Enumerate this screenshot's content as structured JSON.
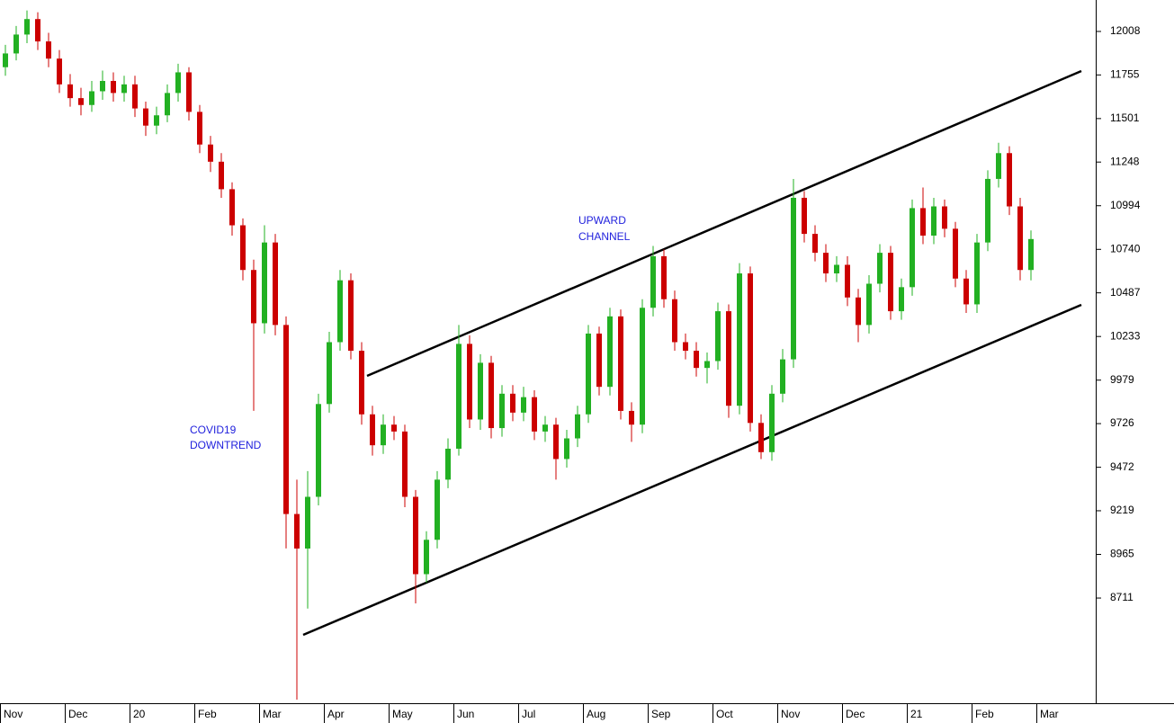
{
  "chart_data": {
    "type": "candlestick",
    "categories": [
      "Nov",
      null,
      null,
      null,
      null,
      null,
      "Dec",
      null,
      null,
      null,
      null,
      null,
      "20",
      null,
      null,
      null,
      null,
      null,
      "Feb",
      null,
      null,
      null,
      null,
      null,
      "Mar",
      null,
      null,
      null,
      null,
      null,
      "Apr",
      null,
      null,
      null,
      null,
      null,
      "May",
      null,
      null,
      null,
      null,
      null,
      "Jun",
      null,
      null,
      null,
      null,
      null,
      "Jul",
      null,
      null,
      null,
      null,
      null,
      "Aug",
      null,
      null,
      null,
      null,
      null,
      "Sep",
      null,
      null,
      null,
      null,
      null,
      "Oct",
      null,
      null,
      null,
      null,
      null,
      "Nov",
      null,
      null,
      null,
      null,
      null,
      "Dec",
      null,
      null,
      null,
      null,
      null,
      "21",
      null,
      null,
      null,
      null,
      null,
      "Feb",
      null,
      null,
      null,
      null,
      null,
      "Mar"
    ],
    "open": [
      11800,
      11880,
      11990,
      12080,
      11950,
      11850,
      11700,
      11620,
      11580,
      11660,
      11720,
      11650,
      11700,
      11560,
      11460,
      11520,
      11650,
      11770,
      11540,
      11350,
      11250,
      11090,
      10880,
      10620,
      10310,
      10780,
      10300,
      9200,
      8999,
      9300,
      9840,
      10200,
      10560,
      10150,
      9780,
      9600,
      9720,
      9680,
      9300,
      8850,
      9050,
      9400,
      9580,
      10190,
      9750,
      10080,
      9700,
      9900,
      9790,
      9880,
      9680,
      9720,
      9520,
      9640,
      9780,
      10250,
      9940,
      10350,
      9800,
      9720,
      10400,
      10700,
      10450,
      10200,
      10150,
      10050,
      10090,
      10380,
      9830,
      10600,
      9730,
      9560,
      9900,
      10100,
      11040,
      10830,
      10720,
      10600,
      10650,
      10460,
      10300,
      10540,
      10720,
      10380,
      10520,
      10980,
      10820,
      10990,
      10860,
      10570,
      10420,
      10780,
      11150,
      11300,
      10990,
      10620,
      null
    ],
    "high": [
      11930,
      12040,
      12130,
      12120,
      12000,
      11900,
      11760,
      11680,
      11720,
      11780,
      11770,
      11750,
      11750,
      11600,
      11570,
      11700,
      11820,
      11800,
      11580,
      11400,
      11300,
      11130,
      10920,
      10680,
      10880,
      10830,
      10350,
      9400,
      9450,
      9900,
      10260,
      10620,
      10600,
      10200,
      9830,
      9780,
      9770,
      9720,
      9340,
      9100,
      9450,
      9640,
      10300,
      10240,
      10130,
      10120,
      9950,
      9950,
      9940,
      9920,
      9770,
      9760,
      9690,
      9830,
      10300,
      10290,
      10400,
      10390,
      9850,
      10450,
      10760,
      10740,
      10500,
      10250,
      10200,
      10140,
      10430,
      10420,
      10660,
      10640,
      9780,
      9950,
      10160,
      11150,
      11080,
      10880,
      10770,
      10700,
      10700,
      10510,
      10590,
      10770,
      10760,
      10570,
      11030,
      11100,
      11040,
      11030,
      10900,
      10620,
      10830,
      11200,
      11360,
      11340,
      11040,
      10850,
      null
    ],
    "low": [
      11750,
      11840,
      11940,
      11900,
      11800,
      11650,
      11570,
      11520,
      11540,
      11610,
      11600,
      11600,
      11510,
      11400,
      11410,
      11480,
      11600,
      11490,
      11300,
      11190,
      11040,
      10820,
      10560,
      9800,
      10250,
      10240,
      9000,
      8120,
      8650,
      9250,
      9790,
      10150,
      10100,
      9720,
      9540,
      9550,
      9630,
      9240,
      8680,
      8800,
      9000,
      9350,
      9540,
      9700,
      9690,
      9640,
      9650,
      9740,
      9740,
      9630,
      9620,
      9400,
      9470,
      9590,
      9730,
      9890,
      9890,
      9750,
      9620,
      9670,
      10350,
      10400,
      10150,
      10100,
      10000,
      9960,
      10040,
      9760,
      9780,
      9680,
      9520,
      9510,
      9850,
      10050,
      10780,
      10670,
      10550,
      10550,
      10410,
      10200,
      10250,
      10490,
      10330,
      10330,
      10470,
      10770,
      10770,
      10810,
      10520,
      10370,
      10370,
      10730,
      11100,
      10940,
      10560,
      10560,
      null
    ],
    "close": [
      11880,
      11990,
      12080,
      11950,
      11850,
      11700,
      11620,
      11580,
      11660,
      11720,
      11650,
      11700,
      11560,
      11460,
      11520,
      11650,
      11770,
      11540,
      11350,
      11250,
      11090,
      10880,
      10620,
      10310,
      10780,
      10300,
      9200,
      8999,
      9300,
      9840,
      10200,
      10560,
      10150,
      9780,
      9600,
      9720,
      9680,
      9300,
      8850,
      9050,
      9400,
      9580,
      10190,
      9750,
      10080,
      9700,
      9900,
      9790,
      9880,
      9680,
      9720,
      9520,
      9640,
      9780,
      10250,
      9940,
      10350,
      9800,
      9720,
      10400,
      10700,
      10450,
      10200,
      10150,
      10050,
      10090,
      10380,
      9830,
      10600,
      9730,
      9560,
      9900,
      10100,
      11040,
      10830,
      10720,
      10600,
      10650,
      10460,
      10300,
      10540,
      10720,
      10380,
      10520,
      10980,
      10820,
      10990,
      10860,
      10570,
      10420,
      10780,
      11150,
      11300,
      10990,
      10620,
      10800,
      null
    ],
    "up_color": "#22b022",
    "down_color": "#cc0000",
    "ylim": [
      8099,
      12191
    ],
    "yticks": [
      12008,
      11755,
      11501,
      11248,
      10994,
      10740,
      10487,
      10233,
      9979,
      9726,
      9472,
      9219,
      8965,
      8711
    ],
    "annotations": [
      {
        "lines": [
          "UPWARD",
          "CHANNEL"
        ]
      },
      {
        "lines": [
          "COVID19",
          "DOWNTREND"
        ]
      }
    ]
  }
}
